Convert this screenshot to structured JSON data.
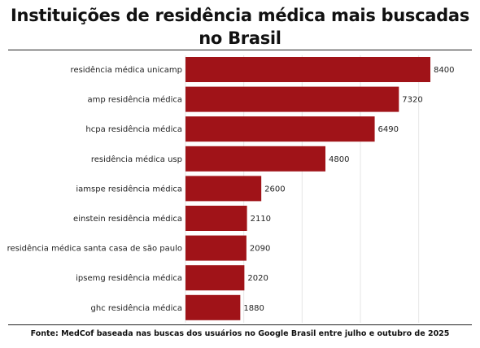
{
  "chart_data": {
    "type": "bar",
    "orientation": "horizontal",
    "title": "Instituições de residência médica mais buscadas no Brasil",
    "categories": [
      "residência médica unicamp",
      "amp residência médica",
      "hcpa residência médica",
      "residência médica usp",
      "iamspe residência médica",
      "einstein residência médica",
      "residência médica santa casa de são paulo",
      "ipsemg residência médica",
      "ghc residência médica"
    ],
    "values": [
      8400,
      7320,
      6490,
      4800,
      2600,
      2110,
      2090,
      2020,
      1880
    ],
    "value_labels": [
      "8400",
      "7320",
      "6490",
      "4800",
      "2600",
      "2110",
      "2090",
      "2020",
      "1880"
    ],
    "xlim": [
      0,
      8400
    ],
    "grid": true,
    "bar_color": "#a01318",
    "grid_color": "#e6e6e6"
  },
  "source": "Fonte: MedCof baseada nas buscas dos usuários no Google Brasil entre julho e outubro de 2025"
}
